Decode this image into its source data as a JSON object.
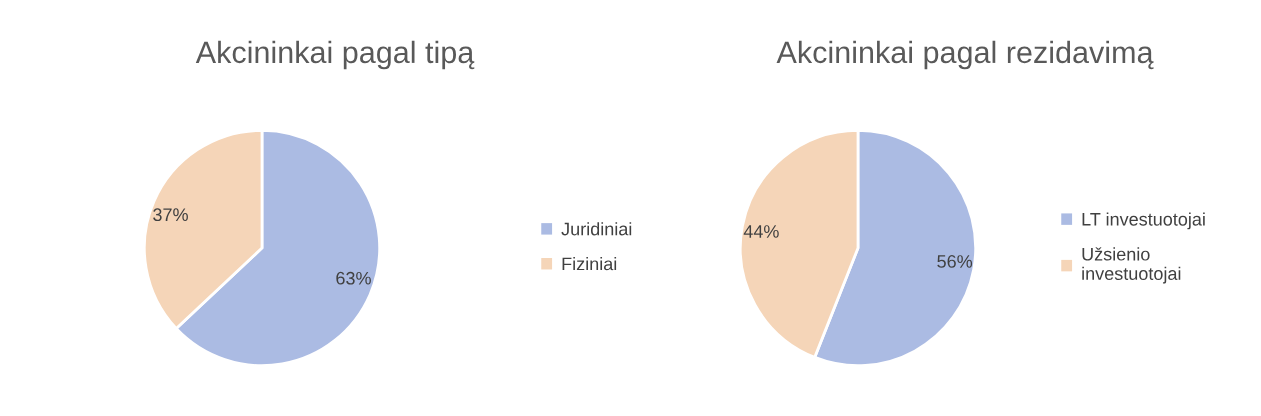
{
  "chart_data": [
    {
      "type": "pie",
      "title": "Akcininkai pagal tipą",
      "categories": [
        "Juridiniai",
        "Fiziniai"
      ],
      "values": [
        63,
        37
      ],
      "colors": [
        "#abbbe3",
        "#f5d5b8"
      ],
      "value_labels": [
        "63%",
        "37%"
      ],
      "legend": "right"
    },
    {
      "type": "pie",
      "title": "Akcininkai pagal rezidavimą",
      "categories": [
        "LT investuotojai",
        "Užsienio\ninvestuotojai"
      ],
      "values": [
        56,
        44
      ],
      "colors": [
        "#abbbe3",
        "#f5d5b8"
      ],
      "value_labels": [
        "56%",
        "44%"
      ],
      "legend": "right"
    }
  ]
}
